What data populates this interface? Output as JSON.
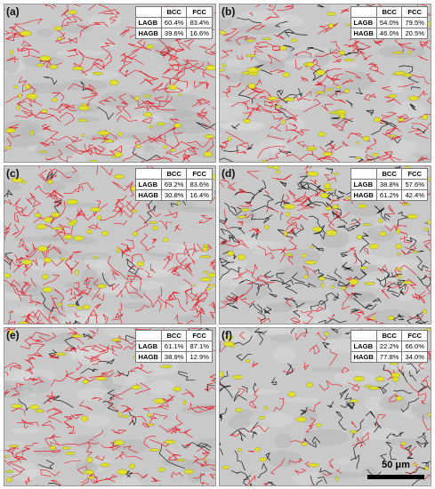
{
  "panels": [
    {
      "label": "(a)",
      "header": [
        "",
        "BCC",
        "FCC"
      ],
      "rows": [
        {
          "name": "LAGB",
          "bcc": "60.4%",
          "fcc": "83.4%"
        },
        {
          "name": "HAGB",
          "bcc": "39.6%",
          "fcc": "16.6%"
        }
      ]
    },
    {
      "label": "(b)",
      "header": [
        "",
        "BCC",
        "FCC"
      ],
      "rows": [
        {
          "name": "LAGB",
          "bcc": "54.0%",
          "fcc": "79.5%"
        },
        {
          "name": "HAGB",
          "bcc": "46.0%",
          "fcc": "20.5%"
        }
      ]
    },
    {
      "label": "(c)",
      "header": [
        "",
        "BCC",
        "FCC"
      ],
      "rows": [
        {
          "name": "LAGB",
          "bcc": "69.2%",
          "fcc": "83.6%"
        },
        {
          "name": "HAGB",
          "bcc": "30.8%",
          "fcc": "16.4%"
        }
      ]
    },
    {
      "label": "(d)",
      "header": [
        "",
        "BCC",
        "FCC"
      ],
      "rows": [
        {
          "name": "LAGB",
          "bcc": "38.8%",
          "fcc": "57.6%"
        },
        {
          "name": "HAGB",
          "bcc": "61.2%",
          "fcc": "42.4%"
        }
      ]
    },
    {
      "label": "(e)",
      "header": [
        "",
        "BCC",
        "FCC"
      ],
      "rows": [
        {
          "name": "LAGB",
          "bcc": "61.1%",
          "fcc": "87.1%"
        },
        {
          "name": "HAGB",
          "bcc": "38.9%",
          "fcc": "12.9%"
        }
      ]
    },
    {
      "label": "(f)",
      "header": [
        "",
        "BCC",
        "FCC"
      ],
      "rows": [
        {
          "name": "LAGB",
          "bcc": "22.2%",
          "fcc": "66.0%"
        },
        {
          "name": "HAGB",
          "bcc": "77.8%",
          "fcc": "34.0%"
        }
      ]
    }
  ],
  "scale_bar": {
    "label": "50 μm"
  },
  "colors": {
    "lagb": "#e8141c",
    "hagb": "#1c1c1c",
    "fcc_phase": "#e2e02a",
    "matrix": "#c9c9c9"
  }
}
